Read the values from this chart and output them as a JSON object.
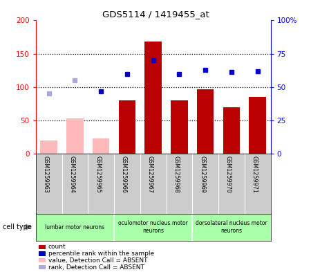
{
  "title": "GDS5114 / 1419455_at",
  "samples": [
    "GSM1259963",
    "GSM1259964",
    "GSM1259965",
    "GSM1259966",
    "GSM1259967",
    "GSM1259968",
    "GSM1259969",
    "GSM1259970",
    "GSM1259971"
  ],
  "count_values": [
    20,
    53,
    23,
    80,
    168,
    80,
    97,
    70,
    85
  ],
  "count_absent": [
    true,
    true,
    true,
    false,
    false,
    false,
    false,
    false,
    false
  ],
  "rank_values": [
    45,
    55,
    46.5,
    59.5,
    70,
    60,
    63,
    61.5,
    62
  ],
  "rank_absent": [
    true,
    true,
    false,
    false,
    false,
    false,
    false,
    false,
    false
  ],
  "ylim_left": [
    0,
    200
  ],
  "ylim_right": [
    0,
    100
  ],
  "yticks_left": [
    0,
    50,
    100,
    150,
    200
  ],
  "yticks_right": [
    0,
    25,
    50,
    75,
    100
  ],
  "ytick_labels_left": [
    "0",
    "50",
    "100",
    "150",
    "200"
  ],
  "ytick_labels_right": [
    "0",
    "25",
    "50",
    "75",
    "100%"
  ],
  "cell_type_groups": [
    {
      "label": "lumbar motor neurons",
      "start": 0,
      "end": 2
    },
    {
      "label": "oculomotor nucleus motor\nneurons",
      "start": 3,
      "end": 5
    },
    {
      "label": "dorsolateral nucleus motor\nneurons",
      "start": 6,
      "end": 8
    }
  ],
  "bar_color_present": "#bb0000",
  "bar_color_absent": "#ffbbbb",
  "rank_color_present": "#0000cc",
  "rank_color_absent": "#aaaadd",
  "cell_type_bg": "#aaffaa",
  "tick_area_bg": "#cccccc",
  "plot_bg": "#ffffff",
  "grid_color": "#000000",
  "legend_items": [
    {
      "label": "count",
      "color": "#bb0000"
    },
    {
      "label": "percentile rank within the sample",
      "color": "#0000cc"
    },
    {
      "label": "value, Detection Call = ABSENT",
      "color": "#ffbbbb"
    },
    {
      "label": "rank, Detection Call = ABSENT",
      "color": "#aaaadd"
    }
  ]
}
